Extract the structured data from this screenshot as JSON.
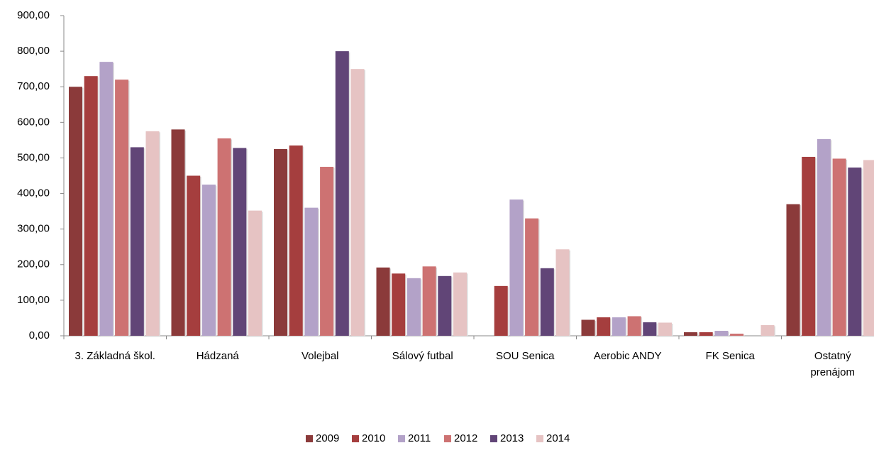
{
  "chart_data": {
    "type": "bar",
    "categories": [
      "3. Základná škol.",
      "Hádzaná",
      "Volejbal",
      "Sálový futbal",
      "SOU Senica",
      "Aerobic ANDY",
      "FK Senica",
      "Ostatný prenájom"
    ],
    "series": [
      {
        "name": "2009",
        "color": "#8b3a3a",
        "values": [
          700,
          580,
          525,
          192,
          null,
          45,
          10,
          370
        ]
      },
      {
        "name": "2010",
        "color": "#a53e3e",
        "values": [
          730,
          450,
          535,
          175,
          140,
          52,
          10,
          503
        ]
      },
      {
        "name": "2011",
        "color": "#b3a2c8",
        "values": [
          770,
          425,
          360,
          162,
          383,
          52,
          14,
          553
        ]
      },
      {
        "name": "2012",
        "color": "#cd7272",
        "values": [
          720,
          555,
          475,
          195,
          330,
          55,
          6,
          498
        ]
      },
      {
        "name": "2013",
        "color": "#614577",
        "values": [
          530,
          528,
          800,
          168,
          190,
          38,
          null,
          473
        ]
      },
      {
        "name": "2014",
        "color": "#e6c3c3",
        "values": [
          575,
          352,
          750,
          178,
          243,
          37,
          30,
          494
        ]
      }
    ],
    "ylim": [
      0,
      900
    ],
    "yticks": [
      {
        "value": 0,
        "label": "0,00"
      },
      {
        "value": 100,
        "label": "100,00"
      },
      {
        "value": 200,
        "label": "200,00"
      },
      {
        "value": 300,
        "label": "300,00"
      },
      {
        "value": 400,
        "label": "400,00"
      },
      {
        "value": 500,
        "label": "500,00"
      },
      {
        "value": 600,
        "label": "600,00"
      },
      {
        "value": 700,
        "label": "700,00"
      },
      {
        "value": 800,
        "label": "800,00"
      },
      {
        "value": 900,
        "label": "900,00"
      }
    ],
    "legend": "bottom"
  }
}
